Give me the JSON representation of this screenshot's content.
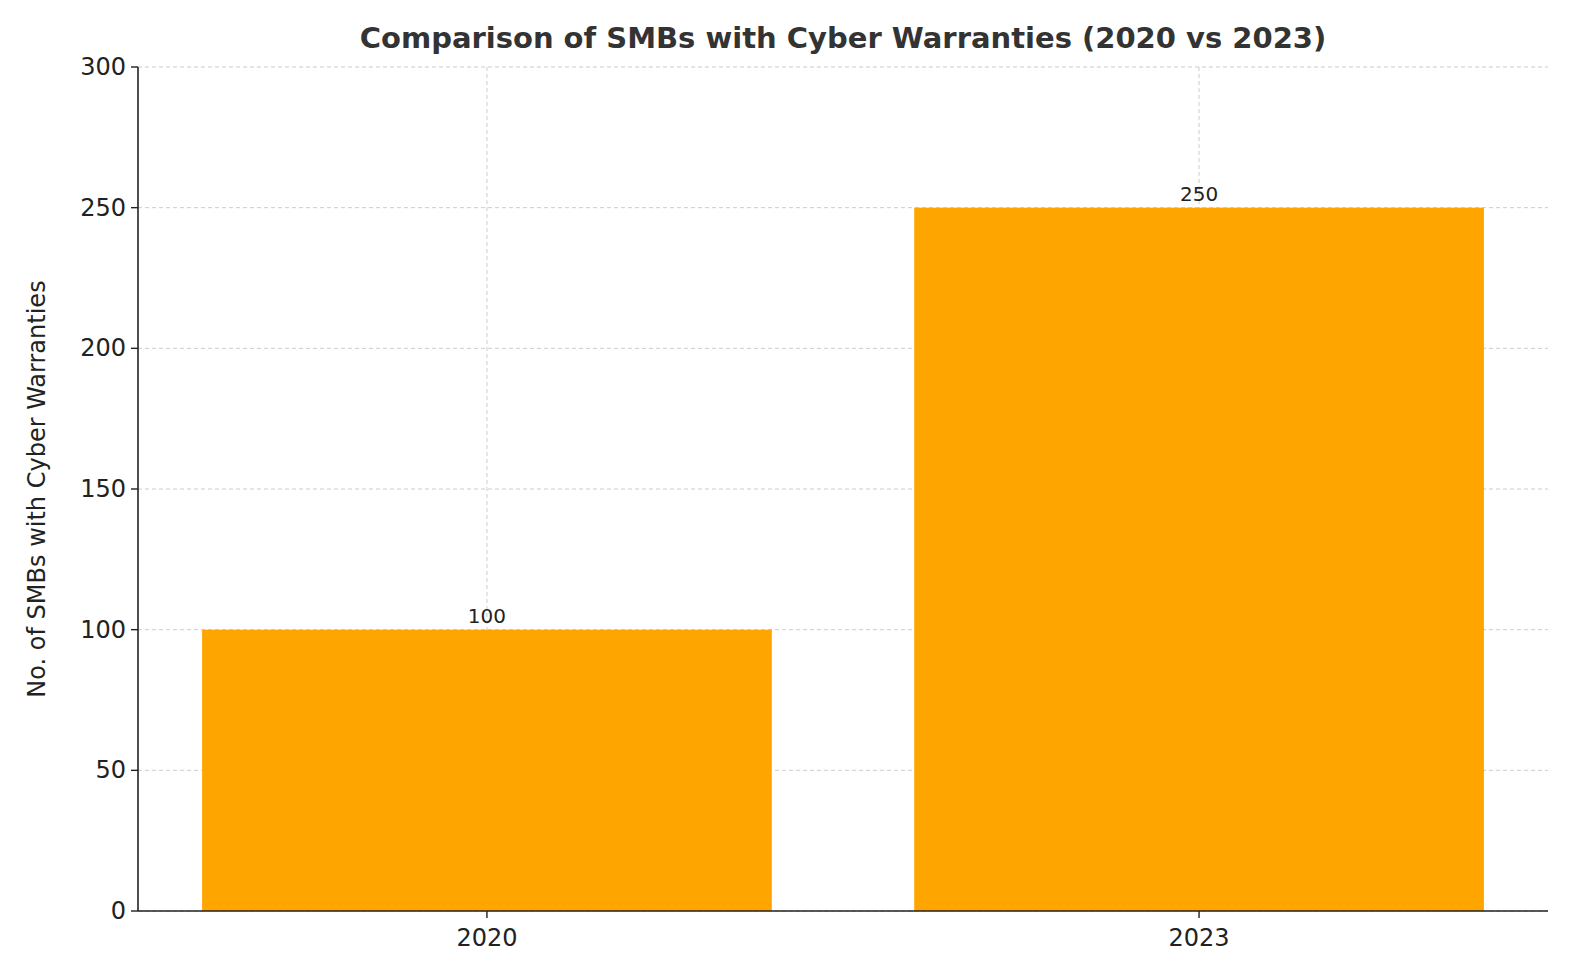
{
  "chart_data": {
    "type": "bar",
    "title": "Comparison of SMBs with Cyber Warranties (2020 vs 2023)",
    "ylabel": "No. of SMBs with Cyber Warranties",
    "categories": [
      "2020",
      "2023"
    ],
    "values": [
      100,
      250
    ],
    "color": "#ffa500",
    "ylim": [
      0,
      300
    ],
    "yticks": [
      0,
      50,
      100,
      150,
      200,
      250,
      300
    ],
    "grid": true,
    "data_labels": true
  }
}
